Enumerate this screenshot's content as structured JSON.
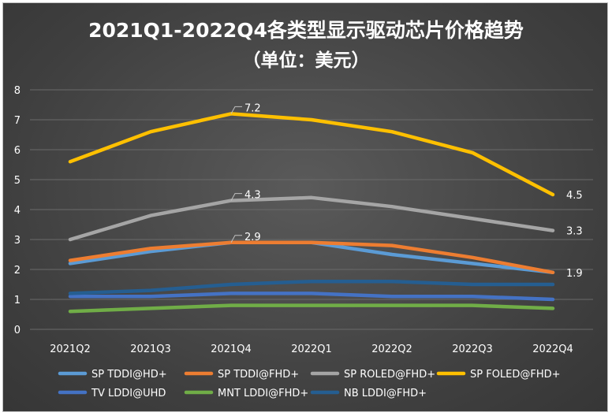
{
  "chart_data": {
    "type": "line",
    "title": "2021Q1-2022Q4各类型显示驱动芯片价格趋势",
    "subtitle": "（单位：美元）",
    "categories": [
      "2021Q2",
      "2021Q3",
      "2021Q4",
      "2022Q1",
      "2022Q2",
      "2022Q3",
      "2022Q4"
    ],
    "yticks": [
      "0",
      "1",
      "2",
      "3",
      "4",
      "5",
      "6",
      "7",
      "8"
    ],
    "ylim": [
      0,
      8
    ],
    "grid": true,
    "legend_position": "bottom",
    "series": [
      {
        "name": "SP TDDI@HD+",
        "color": "#5b9bd5",
        "values": [
          2.2,
          2.6,
          2.9,
          2.9,
          2.5,
          2.2,
          1.9
        ]
      },
      {
        "name": "SP TDDI@FHD+",
        "color": "#ed7d31",
        "values": [
          2.3,
          2.7,
          2.9,
          2.9,
          2.8,
          2.4,
          1.9
        ]
      },
      {
        "name": "SP ROLED@FHD+",
        "color": "#a5a5a5",
        "values": [
          3.0,
          3.8,
          4.3,
          4.4,
          4.1,
          3.7,
          3.3
        ]
      },
      {
        "name": "SP FOLED@FHD+",
        "color": "#ffc000",
        "values": [
          5.6,
          6.6,
          7.2,
          7.0,
          6.6,
          5.9,
          4.5
        ]
      },
      {
        "name": "TV LDDI@UHD",
        "color": "#4472c4",
        "values": [
          1.1,
          1.1,
          1.2,
          1.2,
          1.1,
          1.1,
          1.0
        ]
      },
      {
        "name": "MNT LDDI@FHD+",
        "color": "#70ad47",
        "values": [
          0.6,
          0.7,
          0.8,
          0.8,
          0.8,
          0.8,
          0.7
        ]
      },
      {
        "name": "NB LDDI@FHD+",
        "color": "#255e91",
        "values": [
          1.2,
          1.3,
          1.5,
          1.6,
          1.6,
          1.5,
          1.5
        ]
      }
    ],
    "data_labels": [
      {
        "series": 3,
        "index": 2,
        "text": "7.2",
        "callout": true
      },
      {
        "series": 2,
        "index": 2,
        "text": "4.3",
        "callout": true
      },
      {
        "series": 1,
        "index": 2,
        "text": "2.9",
        "callout": true
      },
      {
        "series": 3,
        "index": 6,
        "text": "4.5",
        "callout": false
      },
      {
        "series": 2,
        "index": 6,
        "text": "3.3",
        "callout": false
      },
      {
        "series": 1,
        "index": 6,
        "text": "1.9",
        "callout": false
      }
    ]
  }
}
